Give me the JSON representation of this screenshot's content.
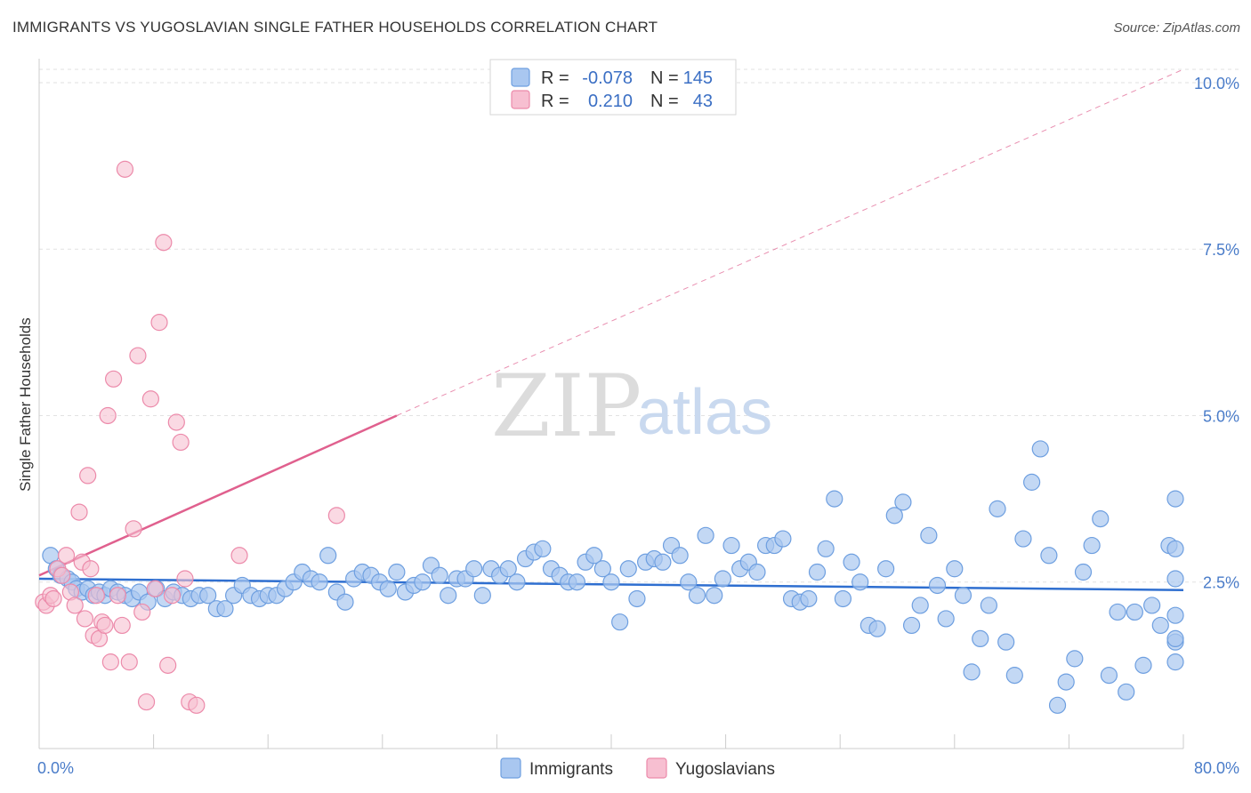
{
  "header": {
    "title": "IMMIGRANTS VS YUGOSLAVIAN SINGLE FATHER HOUSEHOLDS CORRELATION CHART",
    "source": "Source: ZipAtlas.com"
  },
  "watermark": {
    "zip": "ZIP",
    "atlas": "atlas"
  },
  "legend": {
    "rows": [
      {
        "r_label": "R =",
        "r_value": "-0.078",
        "n_label": "N =",
        "n_value": "145"
      },
      {
        "r_label": "R =",
        "r_value": "0.210",
        "n_label": "N =",
        "n_value": "43"
      }
    ]
  },
  "bottom_legend": {
    "immigrants": "Immigrants",
    "yugoslavians": "Yugoslavians"
  },
  "colors": {
    "immigrants_fill": "#a9c7f0",
    "immigrants_stroke": "#6e9fe0",
    "immigrants_line": "#2f6fd0",
    "yugoslavians_fill": "#f7bfd1",
    "yugoslavians_stroke": "#ec8aaa",
    "yugoslavians_line": "#e0608e",
    "tick_text": "#4a7cc9"
  },
  "chart_data": {
    "type": "scatter",
    "ylabel": "Single Father Households",
    "x_axis": {
      "min": 0,
      "max": 80,
      "labels": [
        "0.0%",
        "80.0%"
      ]
    },
    "y_axis": {
      "min": 0,
      "max": 10.2,
      "ticks": [
        2.5,
        5.0,
        7.5,
        10.0
      ],
      "tick_labels": [
        "2.5%",
        "5.0%",
        "7.5%",
        "10.0%"
      ]
    },
    "grid": true,
    "legend_position": "top-center",
    "series": [
      {
        "name": "Immigrants",
        "trend": {
          "x_start": 0,
          "y_start": 2.55,
          "x_end": 80,
          "y_end": 2.38
        },
        "points": [
          [
            0.8,
            2.9
          ],
          [
            1.2,
            2.7
          ],
          [
            1.5,
            2.6
          ],
          [
            2.0,
            2.55
          ],
          [
            2.3,
            2.5
          ],
          [
            2.6,
            2.4
          ],
          [
            3.0,
            2.35
          ],
          [
            3.4,
            2.4
          ],
          [
            3.8,
            2.3
          ],
          [
            4.2,
            2.35
          ],
          [
            4.6,
            2.3
          ],
          [
            5.0,
            2.4
          ],
          [
            5.5,
            2.35
          ],
          [
            6.0,
            2.3
          ],
          [
            6.5,
            2.25
          ],
          [
            7.0,
            2.35
          ],
          [
            7.6,
            2.2
          ],
          [
            8.2,
            2.4
          ],
          [
            8.8,
            2.25
          ],
          [
            9.4,
            2.35
          ],
          [
            10.0,
            2.3
          ],
          [
            10.6,
            2.25
          ],
          [
            11.2,
            2.3
          ],
          [
            11.8,
            2.3
          ],
          [
            12.4,
            2.1
          ],
          [
            13.0,
            2.1
          ],
          [
            13.6,
            2.3
          ],
          [
            14.2,
            2.45
          ],
          [
            14.8,
            2.3
          ],
          [
            15.4,
            2.25
          ],
          [
            16.0,
            2.3
          ],
          [
            16.6,
            2.3
          ],
          [
            17.2,
            2.4
          ],
          [
            17.8,
            2.5
          ],
          [
            18.4,
            2.65
          ],
          [
            19.0,
            2.55
          ],
          [
            19.6,
            2.5
          ],
          [
            20.2,
            2.9
          ],
          [
            20.8,
            2.35
          ],
          [
            21.4,
            2.2
          ],
          [
            22.0,
            2.55
          ],
          [
            22.6,
            2.65
          ],
          [
            23.2,
            2.6
          ],
          [
            23.8,
            2.5
          ],
          [
            24.4,
            2.4
          ],
          [
            25.0,
            2.65
          ],
          [
            25.6,
            2.35
          ],
          [
            26.2,
            2.45
          ],
          [
            26.8,
            2.5
          ],
          [
            27.4,
            2.75
          ],
          [
            28.0,
            2.6
          ],
          [
            28.6,
            2.3
          ],
          [
            29.2,
            2.55
          ],
          [
            29.8,
            2.55
          ],
          [
            30.4,
            2.7
          ],
          [
            31.0,
            2.3
          ],
          [
            31.6,
            2.7
          ],
          [
            32.2,
            2.6
          ],
          [
            32.8,
            2.7
          ],
          [
            33.4,
            2.5
          ],
          [
            34.0,
            2.85
          ],
          [
            34.6,
            2.95
          ],
          [
            35.2,
            3.0
          ],
          [
            35.8,
            2.7
          ],
          [
            36.4,
            2.6
          ],
          [
            37.0,
            2.5
          ],
          [
            37.6,
            2.5
          ],
          [
            38.2,
            2.8
          ],
          [
            38.8,
            2.9
          ],
          [
            39.4,
            2.7
          ],
          [
            40.0,
            2.5
          ],
          [
            40.6,
            1.9
          ],
          [
            41.2,
            2.7
          ],
          [
            41.8,
            2.25
          ],
          [
            42.4,
            2.8
          ],
          [
            43.0,
            2.85
          ],
          [
            43.6,
            2.8
          ],
          [
            44.2,
            3.05
          ],
          [
            44.8,
            2.9
          ],
          [
            45.4,
            2.5
          ],
          [
            46.0,
            2.3
          ],
          [
            46.6,
            3.2
          ],
          [
            47.2,
            2.3
          ],
          [
            47.8,
            2.55
          ],
          [
            48.4,
            3.05
          ],
          [
            49.0,
            2.7
          ],
          [
            49.6,
            2.8
          ],
          [
            50.2,
            2.65
          ],
          [
            50.8,
            3.05
          ],
          [
            51.4,
            3.05
          ],
          [
            52.0,
            3.15
          ],
          [
            52.6,
            2.25
          ],
          [
            53.2,
            2.2
          ],
          [
            53.8,
            2.25
          ],
          [
            54.4,
            2.65
          ],
          [
            55.0,
            3.0
          ],
          [
            55.6,
            3.75
          ],
          [
            56.2,
            2.25
          ],
          [
            56.8,
            2.8
          ],
          [
            57.4,
            2.5
          ],
          [
            58.0,
            1.85
          ],
          [
            58.6,
            1.8
          ],
          [
            59.2,
            2.7
          ],
          [
            59.8,
            3.5
          ],
          [
            60.4,
            3.7
          ],
          [
            61.0,
            1.85
          ],
          [
            61.6,
            2.15
          ],
          [
            62.2,
            3.2
          ],
          [
            62.8,
            2.45
          ],
          [
            63.4,
            1.95
          ],
          [
            64.0,
            2.7
          ],
          [
            64.6,
            2.3
          ],
          [
            65.2,
            1.15
          ],
          [
            65.8,
            1.65
          ],
          [
            66.4,
            2.15
          ],
          [
            67.0,
            3.6
          ],
          [
            67.6,
            1.6
          ],
          [
            68.2,
            1.1
          ],
          [
            68.8,
            3.15
          ],
          [
            69.4,
            4.0
          ],
          [
            70.0,
            4.5
          ],
          [
            70.6,
            2.9
          ],
          [
            71.2,
            0.65
          ],
          [
            71.8,
            1.0
          ],
          [
            72.4,
            1.35
          ],
          [
            73.0,
            2.65
          ],
          [
            73.6,
            3.05
          ],
          [
            74.2,
            3.45
          ],
          [
            74.8,
            1.1
          ],
          [
            75.4,
            2.05
          ],
          [
            76.0,
            0.85
          ],
          [
            76.6,
            2.05
          ],
          [
            77.2,
            1.25
          ],
          [
            77.8,
            2.15
          ],
          [
            78.4,
            1.85
          ],
          [
            79.0,
            3.05
          ],
          [
            79.6,
            1.6
          ],
          [
            80.2,
            1.65
          ],
          [
            80.8,
            2.55
          ],
          [
            81.4,
            3.0
          ],
          [
            82.0,
            1.3
          ],
          [
            82.6,
            3.75
          ],
          [
            83.2,
            2.0
          ]
        ]
      },
      {
        "name": "Yugoslavians",
        "trend": {
          "x_start": 0,
          "y_start": 2.6,
          "x_end": 25,
          "y_end": 5.0
        },
        "trend_extension": {
          "x_start": 25,
          "y_start": 5.0,
          "x_end": 80,
          "y_end": 10.2
        },
        "points": [
          [
            0.3,
            2.2
          ],
          [
            0.5,
            2.15
          ],
          [
            0.8,
            2.3
          ],
          [
            1.0,
            2.25
          ],
          [
            1.3,
            2.7
          ],
          [
            1.6,
            2.6
          ],
          [
            1.9,
            2.9
          ],
          [
            2.2,
            2.35
          ],
          [
            2.5,
            2.15
          ],
          [
            2.8,
            3.55
          ],
          [
            3.0,
            2.8
          ],
          [
            3.2,
            1.95
          ],
          [
            3.4,
            4.1
          ],
          [
            3.6,
            2.7
          ],
          [
            3.8,
            1.7
          ],
          [
            4.0,
            2.3
          ],
          [
            4.2,
            1.65
          ],
          [
            4.4,
            1.9
          ],
          [
            4.6,
            1.85
          ],
          [
            4.8,
            5.0
          ],
          [
            5.0,
            1.3
          ],
          [
            5.2,
            5.55
          ],
          [
            5.5,
            2.3
          ],
          [
            5.8,
            1.85
          ],
          [
            6.0,
            8.7
          ],
          [
            6.3,
            1.3
          ],
          [
            6.6,
            3.3
          ],
          [
            6.9,
            5.9
          ],
          [
            7.2,
            2.05
          ],
          [
            7.5,
            0.7
          ],
          [
            7.8,
            5.25
          ],
          [
            8.1,
            2.4
          ],
          [
            8.4,
            6.4
          ],
          [
            8.7,
            7.6
          ],
          [
            9.0,
            1.25
          ],
          [
            9.3,
            2.3
          ],
          [
            9.6,
            4.9
          ],
          [
            9.9,
            4.6
          ],
          [
            10.2,
            2.55
          ],
          [
            10.5,
            0.7
          ],
          [
            11.0,
            0.65
          ],
          [
            14.0,
            2.9
          ],
          [
            20.8,
            3.5
          ]
        ]
      }
    ]
  }
}
